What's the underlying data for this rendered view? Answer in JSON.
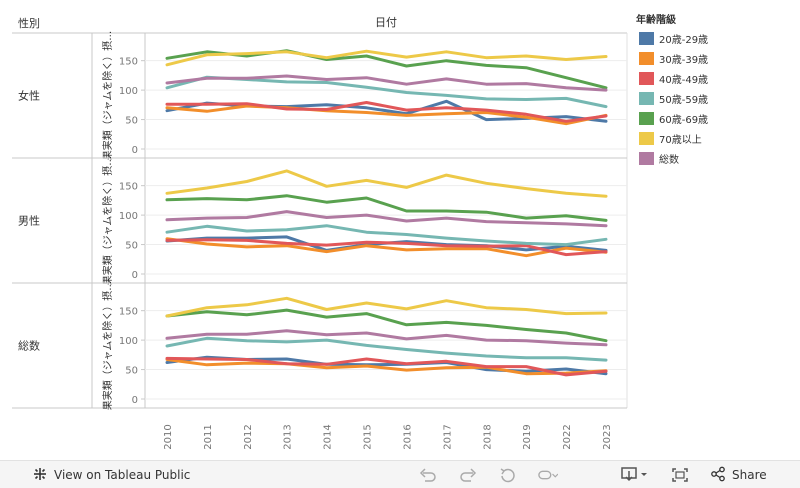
{
  "chart_data": {
    "type": "line",
    "column_header": "日付",
    "row_header": "性別",
    "y_axis_label": "果実類（ジャムを除く）摂…",
    "legend_title": "年齢階級",
    "legend_position": "right",
    "x_ticks": [
      "2010",
      "2011",
      "2012",
      "2013",
      "2014",
      "2015",
      "2016",
      "2017",
      "2018",
      "2019",
      "2022",
      "2023"
    ],
    "y_ticks": [
      0,
      50,
      100,
      150
    ],
    "ylim": [
      0,
      180
    ],
    "series_meta": [
      {
        "name": "20歳-29歳",
        "color": "#4e79a7"
      },
      {
        "name": "30歳-39歳",
        "color": "#f28e2b"
      },
      {
        "name": "40歳-49歳",
        "color": "#e15759"
      },
      {
        "name": "50歳-59歳",
        "color": "#76b7b2"
      },
      {
        "name": "60歳-69歳",
        "color": "#59a14f"
      },
      {
        "name": "70歳以上",
        "color": "#edc948"
      },
      {
        "name": "総数",
        "color": "#b07aa1"
      }
    ],
    "panels": [
      {
        "label": "女性",
        "series": [
          [
            65,
            78,
            73,
            72,
            75,
            70,
            60,
            81,
            50,
            52,
            55,
            47
          ],
          [
            70,
            64,
            73,
            70,
            65,
            62,
            57,
            60,
            62,
            54,
            43,
            57
          ],
          [
            76,
            76,
            77,
            68,
            67,
            79,
            66,
            70,
            66,
            59,
            47,
            56
          ],
          [
            104,
            122,
            118,
            114,
            113,
            105,
            96,
            91,
            85,
            84,
            86,
            72
          ],
          [
            154,
            165,
            158,
            167,
            152,
            158,
            141,
            150,
            142,
            138,
            121,
            104
          ],
          [
            143,
            160,
            162,
            165,
            155,
            166,
            156,
            165,
            155,
            158,
            152,
            157
          ],
          [
            112,
            120,
            120,
            124,
            118,
            121,
            110,
            119,
            110,
            111,
            104,
            100
          ]
        ]
      },
      {
        "label": "男性",
        "series": [
          [
            56,
            61,
            61,
            63,
            40,
            50,
            55,
            50,
            48,
            41,
            47,
            40
          ],
          [
            60,
            51,
            46,
            48,
            38,
            48,
            41,
            43,
            43,
            31,
            44,
            37
          ],
          [
            57,
            58,
            57,
            52,
            49,
            54,
            52,
            48,
            47,
            48,
            33,
            38
          ],
          [
            71,
            81,
            73,
            75,
            82,
            71,
            67,
            61,
            56,
            52,
            50,
            59
          ],
          [
            126,
            128,
            126,
            133,
            122,
            129,
            107,
            107,
            105,
            95,
            99,
            91
          ],
          [
            137,
            146,
            157,
            175,
            149,
            159,
            147,
            168,
            154,
            145,
            137,
            132
          ],
          [
            92,
            95,
            96,
            106,
            96,
            100,
            90,
            95,
            89,
            87,
            85,
            82
          ]
        ]
      },
      {
        "label": "総数",
        "series": [
          [
            62,
            71,
            67,
            68,
            59,
            58,
            59,
            62,
            50,
            47,
            51,
            43
          ],
          [
            67,
            58,
            61,
            60,
            53,
            56,
            49,
            53,
            54,
            43,
            44,
            48
          ],
          [
            69,
            68,
            67,
            60,
            59,
            68,
            60,
            64,
            55,
            55,
            41,
            47
          ],
          [
            90,
            103,
            99,
            97,
            100,
            91,
            84,
            78,
            73,
            70,
            70,
            66
          ],
          [
            141,
            148,
            143,
            151,
            139,
            145,
            126,
            130,
            125,
            118,
            112,
            99
          ],
          [
            141,
            155,
            160,
            171,
            152,
            163,
            153,
            167,
            155,
            152,
            145,
            146
          ],
          [
            103,
            110,
            110,
            116,
            109,
            112,
            102,
            108,
            100,
            99,
            95,
            92
          ]
        ]
      }
    ]
  },
  "toolbar": {
    "view_label": "View on Tableau Public",
    "share_label": "Share"
  }
}
